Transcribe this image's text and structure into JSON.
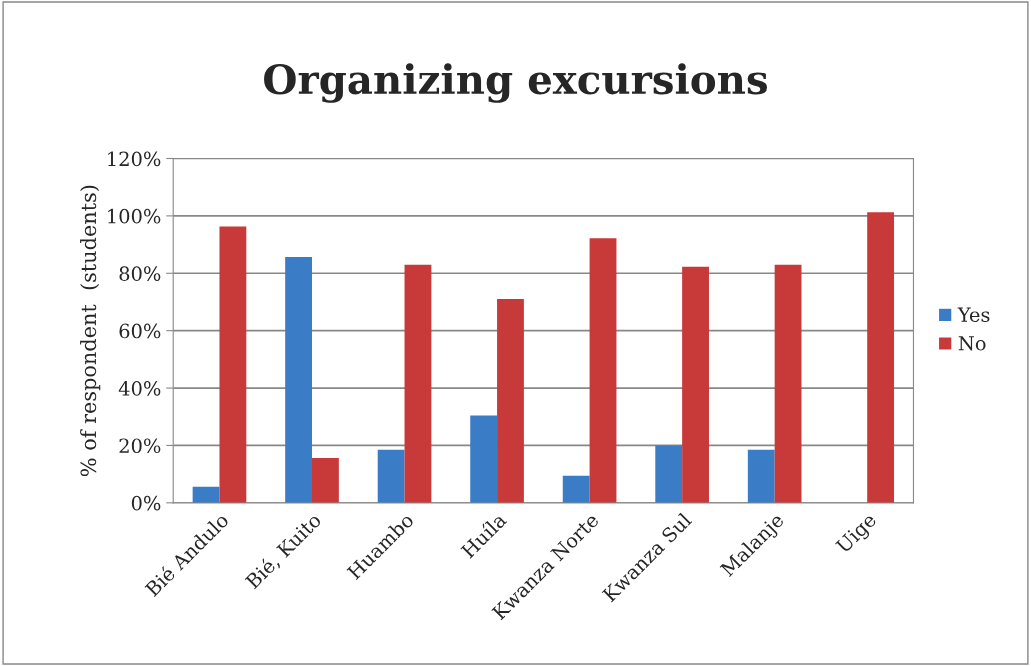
{
  "chart_data": {
    "type": "bar",
    "title": "Organizing excursions",
    "ylabel": "% of respondent  (students)",
    "categories": [
      "Bié Andulo",
      "Bié, Kuito",
      "Huambo",
      "Huíla",
      "Kwanza Norte",
      "Kwanza Sul",
      "Malanje",
      "Uige"
    ],
    "series": [
      {
        "name": "Yes",
        "color": "#3a7cc6",
        "values": [
          5.6,
          85.7,
          18.5,
          30.4,
          9.4,
          20,
          18.5,
          0
        ]
      },
      {
        "name": "No",
        "color": "#c8393a",
        "values": [
          96.3,
          15.6,
          83,
          71,
          92.2,
          82.3,
          83,
          101.3
        ]
      }
    ],
    "ylim": [
      0,
      120
    ],
    "yticks": [
      {
        "value": 0,
        "label": "0%"
      },
      {
        "value": 20,
        "label": "20%"
      },
      {
        "value": 40,
        "label": "40%"
      },
      {
        "value": 60,
        "label": "60%"
      },
      {
        "value": 80,
        "label": "80%"
      },
      {
        "value": 100,
        "label": "100%"
      },
      {
        "value": 120,
        "label": "120%"
      }
    ],
    "grid": "y",
    "legend": "right"
  }
}
